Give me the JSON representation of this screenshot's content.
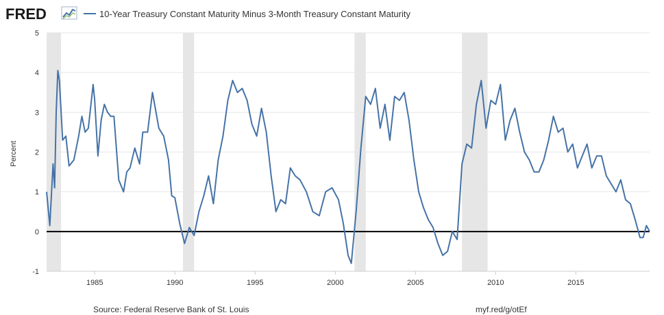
{
  "header": {
    "logo": "FRED",
    "series_title": "10-Year Treasury Constant Maturity Minus 3-Month Treasury Constant Maturity"
  },
  "footer": {
    "source": "Source: Federal Reserve Bank of St. Louis",
    "short_url": "myf.red/g/otEf"
  },
  "colors": {
    "series": "#4572a7",
    "recession": "#e6e6e6",
    "zero_line": "#000000",
    "grid": "#e6e6e6"
  },
  "chart_data": {
    "type": "line",
    "title": "10-Year Treasury Constant Maturity Minus 3-Month Treasury Constant Maturity",
    "ylabel": "Percent",
    "xlabel": "",
    "ylim": [
      -1,
      5
    ],
    "xlim": [
      1982.0,
      2019.6
    ],
    "y_ticks": [
      "-1",
      "0",
      "1",
      "2",
      "3",
      "4",
      "5"
    ],
    "x_ticks": [
      "1985",
      "1990",
      "1995",
      "2000",
      "2005",
      "2010",
      "2015"
    ],
    "grid": true,
    "legend": "top-left",
    "reference_line": 0,
    "recessions": [
      [
        1981.6,
        1982.9
      ],
      [
        1990.5,
        1991.2
      ],
      [
        2001.2,
        2001.9
      ],
      [
        2007.9,
        2009.5
      ]
    ],
    "series": [
      {
        "name": "10-Year Treasury Constant Maturity Minus 3-Month Treasury Constant Maturity",
        "x": [
          1982.0,
          1982.2,
          1982.4,
          1982.5,
          1982.6,
          1982.7,
          1982.8,
          1983.0,
          1983.2,
          1983.4,
          1983.7,
          1984.0,
          1984.2,
          1984.4,
          1984.6,
          1984.9,
          1985.0,
          1985.2,
          1985.4,
          1985.6,
          1985.8,
          1986.0,
          1986.2,
          1986.5,
          1986.8,
          1987.0,
          1987.2,
          1987.5,
          1987.8,
          1988.0,
          1988.3,
          1988.6,
          1989.0,
          1989.3,
          1989.6,
          1989.8,
          1990.0,
          1990.3,
          1990.6,
          1990.9,
          1991.2,
          1991.5,
          1991.8,
          1992.1,
          1992.4,
          1992.7,
          1993.0,
          1993.3,
          1993.6,
          1993.9,
          1994.2,
          1994.5,
          1994.8,
          1995.1,
          1995.4,
          1995.7,
          1996.0,
          1996.3,
          1996.6,
          1996.9,
          1997.2,
          1997.5,
          1997.8,
          1998.2,
          1998.6,
          1999.0,
          1999.4,
          1999.8,
          2000.2,
          2000.5,
          2000.8,
          2001.0,
          2001.3,
          2001.6,
          2001.9,
          2002.2,
          2002.5,
          2002.8,
          2003.1,
          2003.4,
          2003.7,
          2004.0,
          2004.3,
          2004.6,
          2004.9,
          2005.2,
          2005.5,
          2005.8,
          2006.1,
          2006.4,
          2006.7,
          2007.0,
          2007.3,
          2007.6,
          2007.9,
          2008.2,
          2008.5,
          2008.8,
          2009.1,
          2009.4,
          2009.7,
          2010.0,
          2010.3,
          2010.6,
          2010.9,
          2011.2,
          2011.5,
          2011.8,
          2012.1,
          2012.4,
          2012.7,
          2013.0,
          2013.3,
          2013.6,
          2013.9,
          2014.2,
          2014.5,
          2014.8,
          2015.1,
          2015.4,
          2015.7,
          2016.0,
          2016.3,
          2016.6,
          2016.9,
          2017.2,
          2017.5,
          2017.8,
          2018.1,
          2018.4,
          2018.7,
          2019.0,
          2019.2,
          2019.4,
          2019.6
        ],
        "values": [
          1.0,
          0.15,
          1.7,
          1.1,
          3.0,
          4.05,
          3.8,
          2.3,
          2.4,
          1.65,
          1.8,
          2.4,
          2.9,
          2.5,
          2.6,
          3.7,
          3.3,
          1.9,
          2.8,
          3.2,
          3.0,
          2.9,
          2.9,
          1.3,
          1.0,
          1.5,
          1.6,
          2.1,
          1.7,
          2.5,
          2.5,
          3.5,
          2.6,
          2.4,
          1.8,
          0.9,
          0.85,
          0.2,
          -0.3,
          0.1,
          -0.1,
          0.5,
          0.9,
          1.4,
          0.7,
          1.8,
          2.4,
          3.3,
          3.8,
          3.5,
          3.6,
          3.3,
          2.7,
          2.4,
          3.1,
          2.5,
          1.4,
          0.5,
          0.8,
          0.7,
          1.6,
          1.4,
          1.3,
          1.0,
          0.5,
          0.4,
          1.0,
          1.1,
          0.8,
          0.2,
          -0.6,
          -0.8,
          0.5,
          2.1,
          3.4,
          3.2,
          3.6,
          2.6,
          3.2,
          2.3,
          3.4,
          3.3,
          3.5,
          2.8,
          1.8,
          1.0,
          0.6,
          0.3,
          0.1,
          -0.3,
          -0.6,
          -0.5,
          0.0,
          -0.2,
          1.7,
          2.2,
          2.1,
          3.2,
          3.8,
          2.6,
          3.3,
          3.2,
          3.7,
          2.3,
          2.8,
          3.1,
          2.5,
          2.0,
          1.8,
          1.5,
          1.5,
          1.8,
          2.3,
          2.9,
          2.5,
          2.6,
          2.0,
          2.2,
          1.6,
          1.9,
          2.2,
          1.6,
          1.9,
          1.9,
          1.4,
          1.2,
          1.0,
          1.3,
          0.8,
          0.7,
          0.3,
          -0.15,
          -0.15,
          0.15,
          0.0
        ]
      }
    ]
  }
}
